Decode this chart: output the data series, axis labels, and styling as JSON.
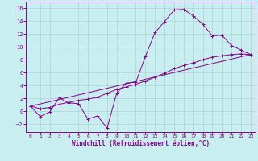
{
  "xlabel": "Windchill (Refroidissement éolien,°C)",
  "background_color": "#c8eef0",
  "grid_color": "#b0d0d8",
  "line_color": "#880088",
  "spine_color": "#880088",
  "xlim": [
    -0.5,
    23.5
  ],
  "ylim": [
    -3.2,
    17.0
  ],
  "xticks": [
    0,
    1,
    2,
    3,
    4,
    5,
    6,
    7,
    8,
    9,
    10,
    11,
    12,
    13,
    14,
    15,
    16,
    17,
    18,
    19,
    20,
    21,
    22,
    23
  ],
  "yticks": [
    -2,
    0,
    2,
    4,
    6,
    8,
    10,
    12,
    14,
    16
  ],
  "series1_x": [
    0,
    1,
    2,
    3,
    4,
    5,
    6,
    7,
    8,
    9,
    10,
    11,
    12,
    13,
    14,
    15,
    16,
    17,
    18,
    19,
    20,
    21,
    22,
    23
  ],
  "series1_y": [
    0.8,
    -0.8,
    -0.1,
    2.1,
    1.3,
    1.2,
    -1.2,
    -0.7,
    -2.6,
    2.8,
    4.4,
    4.5,
    8.5,
    12.2,
    13.9,
    15.7,
    15.8,
    14.8,
    13.5,
    11.7,
    11.8,
    10.2,
    9.5,
    8.8
  ],
  "series2_x": [
    0,
    1,
    2,
    3,
    4,
    5,
    6,
    7,
    8,
    9,
    10,
    11,
    12,
    13,
    14,
    15,
    16,
    17,
    18,
    19,
    20,
    21,
    22,
    23
  ],
  "series2_y": [
    0.8,
    0.4,
    0.6,
    1.1,
    1.4,
    1.7,
    1.9,
    2.2,
    2.8,
    3.4,
    3.8,
    4.2,
    4.7,
    5.3,
    5.9,
    6.6,
    7.1,
    7.5,
    8.0,
    8.4,
    8.6,
    8.8,
    8.9,
    8.8
  ],
  "series3_x": [
    0,
    23
  ],
  "series3_y": [
    0.8,
    8.8
  ]
}
